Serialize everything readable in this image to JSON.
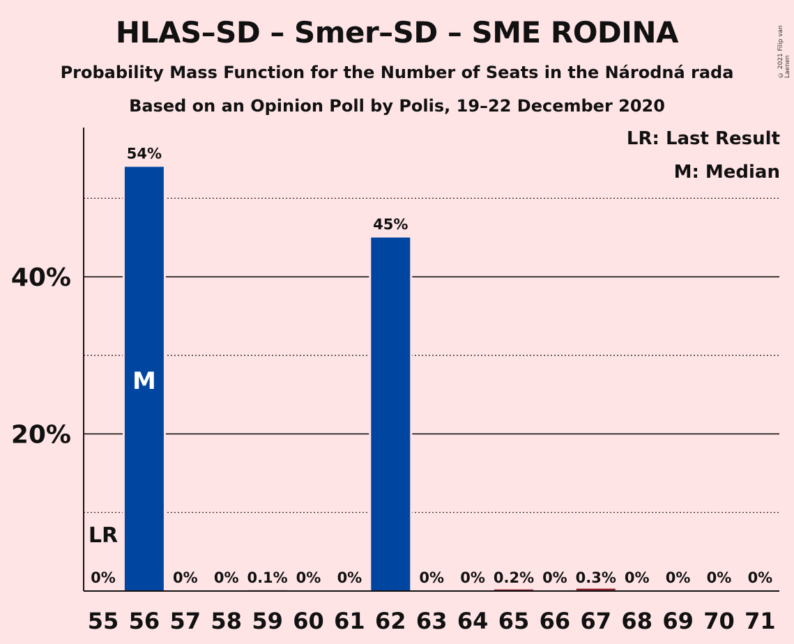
{
  "title": "HLAS–SD – Smer–SD – SME RODINA",
  "subtitle1": "Probability Mass Function for the Number of Seats in the Národná rada",
  "subtitle2": "Based on an Opinion Poll by Polis, 19–22 December 2020",
  "copyright": "© 2021 Filip van Laenen",
  "legend": {
    "last_result": "LR: Last Result",
    "median": "M: Median"
  },
  "colors": {
    "bar": "#0046a0",
    "last_result_bar": "#8b1a2a",
    "background": "#ffe4e6"
  },
  "chart_data": {
    "type": "bar",
    "categories": [
      "55",
      "56",
      "57",
      "58",
      "59",
      "60",
      "61",
      "62",
      "63",
      "64",
      "65",
      "66",
      "67",
      "68",
      "69",
      "70",
      "71"
    ],
    "values": [
      0,
      54,
      0,
      0,
      0.1,
      0,
      0,
      45,
      0,
      0,
      0.2,
      0,
      0.3,
      0,
      0,
      0,
      0
    ],
    "value_labels": [
      "0%",
      "54%",
      "0%",
      "0%",
      "0.1%",
      "0%",
      "0%",
      "45%",
      "0%",
      "0%",
      "0.2%",
      "0%",
      "0.3%",
      "0%",
      "0%",
      "0%",
      "0%"
    ],
    "ylim": [
      0,
      59
    ],
    "yticks": [
      20,
      40
    ],
    "ytick_labels": [
      "20%",
      "40%"
    ],
    "minor_gridlines": [
      10,
      30,
      50
    ],
    "last_result": "55",
    "last_result_label": "LR",
    "median": "56",
    "median_label": "M"
  }
}
